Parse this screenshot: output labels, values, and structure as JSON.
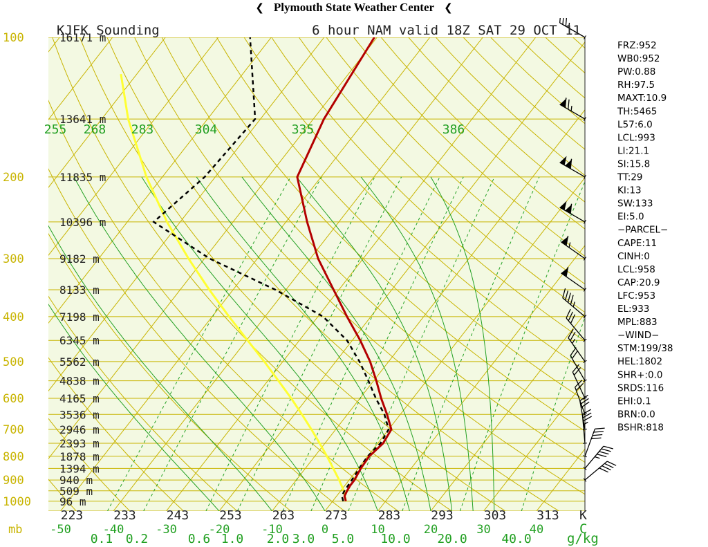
{
  "header": {
    "title": "Plymouth State Weather Center",
    "left_flag_icon": "wind-barb-flag-icon",
    "right_flag_icon": "wind-barb-flag-icon"
  },
  "colors": {
    "background": "#f3f9e2",
    "isobar": "#c8b400",
    "isotherm": "#c8b400",
    "dry_adiabat": "#c8b400",
    "moist_adiabat": "#22a022",
    "mixing_ratio": "#22a022",
    "temperature": "#b30000",
    "dewpoint": "#000000",
    "parcel": "#ffff33"
  },
  "chart_data": {
    "type": "skew-t",
    "station_title": "KJFK Sounding",
    "valid_title": "6 hour NAM valid 18Z SAT 29 OCT 11",
    "pressure_axis_unit": "mb",
    "pressure_labels": [
      {
        "p": 100,
        "label": "100"
      },
      {
        "p": 200,
        "label": "200"
      },
      {
        "p": 300,
        "label": "300"
      },
      {
        "p": 400,
        "label": "400"
      },
      {
        "p": 500,
        "label": "500"
      },
      {
        "p": 600,
        "label": "600"
      },
      {
        "p": 700,
        "label": "700"
      },
      {
        "p": 800,
        "label": "800"
      },
      {
        "p": 900,
        "label": "900"
      },
      {
        "p": 1000,
        "label": "1000"
      }
    ],
    "height_labels": [
      {
        "p": 100,
        "label": "16171 m"
      },
      {
        "p": 150,
        "label": "13641 m"
      },
      {
        "p": 200,
        "label": "11835 m"
      },
      {
        "p": 250,
        "label": "10396 m"
      },
      {
        "p": 300,
        "label": "9182 m"
      },
      {
        "p": 350,
        "label": "8133 m"
      },
      {
        "p": 400,
        "label": "7198 m"
      },
      {
        "p": 450,
        "label": "6345 m"
      },
      {
        "p": 500,
        "label": "5562 m"
      },
      {
        "p": 550,
        "label": "4838 m"
      },
      {
        "p": 600,
        "label": "4165 m"
      },
      {
        "p": 650,
        "label": "3536 m"
      },
      {
        "p": 700,
        "label": "2946 m"
      },
      {
        "p": 750,
        "label": "2393 m"
      },
      {
        "p": 800,
        "label": "1878 m"
      },
      {
        "p": 850,
        "label": "1394 m"
      },
      {
        "p": 900,
        "label": "940 m"
      },
      {
        "p": 950,
        "label": "509 m"
      },
      {
        "p": 1000,
        "label": "96 m"
      }
    ],
    "temperature_ticks": [
      {
        "t": -50,
        "label": "-50"
      },
      {
        "t": -40,
        "label": "-40"
      },
      {
        "t": -30,
        "label": "-30"
      },
      {
        "t": -20,
        "label": "-20"
      },
      {
        "t": -10,
        "label": "-10"
      },
      {
        "t": 0,
        "label": "0"
      },
      {
        "t": 10,
        "label": "10"
      },
      {
        "t": 20,
        "label": "20"
      },
      {
        "t": 30,
        "label": "30"
      },
      {
        "t": 40,
        "label": "40"
      }
    ],
    "temperature_end_label": "C",
    "theta_labels": [
      "223",
      "233",
      "243",
      "253",
      "263",
      "273",
      "283",
      "293",
      "303",
      "313"
    ],
    "theta_unit": "K",
    "mixing_ratio_labels": [
      "0.1",
      "0.2",
      "0.6",
      "1.0",
      "2.0",
      "3.0",
      "5.0",
      "10.0",
      "20.0",
      "40.0"
    ],
    "mixing_ratio_unit": "g/kg",
    "thetae_labels": [
      "255",
      "268",
      "283",
      "304",
      "335",
      "386"
    ],
    "temperature_profile": [
      {
        "p": 1000,
        "t": 2.5
      },
      {
        "p": 975,
        "t": 1.5
      },
      {
        "p": 950,
        "t": 1.2
      },
      {
        "p": 925,
        "t": 1.0
      },
      {
        "p": 900,
        "t": 1.0
      },
      {
        "p": 850,
        "t": 0.5
      },
      {
        "p": 800,
        "t": 0.3
      },
      {
        "p": 750,
        "t": 1.0
      },
      {
        "p": 700,
        "t": 0.5
      },
      {
        "p": 650,
        "t": -2.5
      },
      {
        "p": 600,
        "t": -6.0
      },
      {
        "p": 550,
        "t": -9.5
      },
      {
        "p": 500,
        "t": -13.5
      },
      {
        "p": 450,
        "t": -18.5
      },
      {
        "p": 400,
        "t": -24.5
      },
      {
        "p": 350,
        "t": -31.0
      },
      {
        "p": 300,
        "t": -38.5
      },
      {
        "p": 250,
        "t": -46.0
      },
      {
        "p": 200,
        "t": -54.5
      },
      {
        "p": 150,
        "t": -58.0
      },
      {
        "p": 100,
        "t": -60.5
      }
    ],
    "dewpoint_profile": [
      {
        "p": 1000,
        "t": 2.0
      },
      {
        "p": 975,
        "t": 1.0
      },
      {
        "p": 950,
        "t": 0.7
      },
      {
        "p": 925,
        "t": 0.6
      },
      {
        "p": 900,
        "t": 0.5
      },
      {
        "p": 850,
        "t": 0.2
      },
      {
        "p": 800,
        "t": 0.0
      },
      {
        "p": 750,
        "t": 0.5
      },
      {
        "p": 700,
        "t": 0.0
      },
      {
        "p": 650,
        "t": -3.0
      },
      {
        "p": 600,
        "t": -7.0
      },
      {
        "p": 550,
        "t": -11.0
      },
      {
        "p": 500,
        "t": -15.5
      },
      {
        "p": 450,
        "t": -21.0
      },
      {
        "p": 400,
        "t": -29.0
      },
      {
        "p": 350,
        "t": -42.0
      },
      {
        "p": 300,
        "t": -59.0
      },
      {
        "p": 250,
        "t": -75.0
      },
      {
        "p": 200,
        "t": -72.0
      },
      {
        "p": 150,
        "t": -71.0
      },
      {
        "p": 100,
        "t": -84.0
      }
    ],
    "parcel_profile": [
      {
        "p": 1000,
        "t": 2.5
      },
      {
        "p": 950,
        "t": 0.6
      },
      {
        "p": 900,
        "t": -1.9
      },
      {
        "p": 850,
        "t": -4.7
      },
      {
        "p": 800,
        "t": -7.7
      },
      {
        "p": 750,
        "t": -11.0
      },
      {
        "p": 700,
        "t": -14.6
      },
      {
        "p": 650,
        "t": -18.6
      },
      {
        "p": 600,
        "t": -23.0
      },
      {
        "p": 550,
        "t": -28.0
      },
      {
        "p": 500,
        "t": -33.5
      },
      {
        "p": 450,
        "t": -39.8
      },
      {
        "p": 400,
        "t": -46.8
      },
      {
        "p": 350,
        "t": -54.5
      },
      {
        "p": 300,
        "t": -63.0
      },
      {
        "p": 250,
        "t": -72.5
      },
      {
        "p": 200,
        "t": -83.0
      },
      {
        "p": 150,
        "t": -95.0
      },
      {
        "p": 120,
        "t": -103.0
      }
    ],
    "wind_barbs": [
      {
        "p": 100,
        "dir": 300,
        "kt": 35
      },
      {
        "p": 150,
        "dir": 300,
        "kt": 75
      },
      {
        "p": 200,
        "dir": 300,
        "kt": 110
      },
      {
        "p": 250,
        "dir": 300,
        "kt": 110
      },
      {
        "p": 300,
        "dir": 305,
        "kt": 65
      },
      {
        "p": 350,
        "dir": 305,
        "kt": 60
      },
      {
        "p": 400,
        "dir": 310,
        "kt": 45
      },
      {
        "p": 450,
        "dir": 320,
        "kt": 30
      },
      {
        "p": 500,
        "dir": 325,
        "kt": 25
      },
      {
        "p": 550,
        "dir": 330,
        "kt": 20
      },
      {
        "p": 600,
        "dir": 335,
        "kt": 20
      },
      {
        "p": 650,
        "dir": 340,
        "kt": 20
      },
      {
        "p": 700,
        "dir": 350,
        "kt": 30
      },
      {
        "p": 750,
        "dir": 355,
        "kt": 35
      },
      {
        "p": 800,
        "dir": 20,
        "kt": 40
      },
      {
        "p": 850,
        "dir": 40,
        "kt": 45
      },
      {
        "p": 900,
        "dir": 50,
        "kt": 40
      }
    ],
    "indices": [
      "FRZ:952",
      "WB0:952",
      "PW:0.88",
      "RH:97.5",
      "MAXT:10.9",
      "TH:5465",
      "L57:6.0",
      "LCL:993",
      "LI:21.1",
      "SI:15.8",
      "TT:29",
      "KI:13",
      "SW:133",
      "EI:5.0",
      "−PARCEL−",
      "CAPE:11",
      "CINH:0",
      "LCL:958",
      "CAP:20.9",
      "LFC:953",
      "EL:933",
      "MPL:883",
      "−WIND−",
      "STM:199/38",
      "HEL:1802",
      "SHR+:0.0",
      "SRDS:116",
      "EHI:0.1",
      "BRN:0.0",
      "BSHR:818"
    ]
  }
}
